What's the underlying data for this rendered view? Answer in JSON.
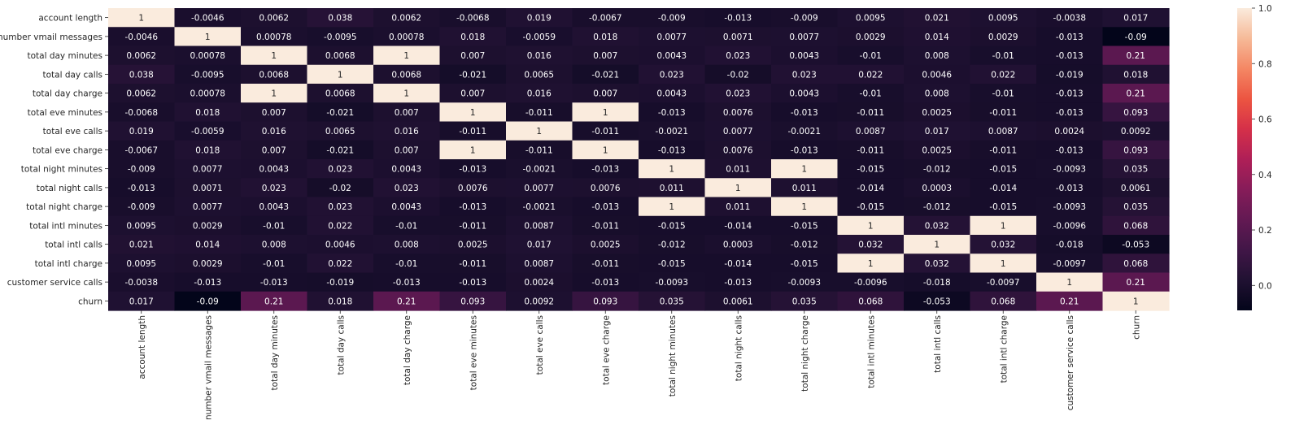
{
  "chart_data": {
    "type": "heatmap",
    "labels": [
      "account length",
      "number vmail messages",
      "total day minutes",
      "total day calls",
      "total day charge",
      "total eve minutes",
      "total eve calls",
      "total eve charge",
      "total night minutes",
      "total night calls",
      "total night charge",
      "total intl minutes",
      "total intl calls",
      "total intl charge",
      "customer service calls",
      "churn"
    ],
    "values": [
      [
        "1",
        "-0.0046",
        "0.0062",
        "0.038",
        "0.0062",
        "-0.0068",
        "0.019",
        "-0.0067",
        "-0.009",
        "-0.013",
        "-0.009",
        "0.0095",
        "0.021",
        "0.0095",
        "-0.0038",
        "0.017"
      ],
      [
        "-0.0046",
        "1",
        "0.00078",
        "-0.0095",
        "0.00078",
        "0.018",
        "-0.0059",
        "0.018",
        "0.0077",
        "0.0071",
        "0.0077",
        "0.0029",
        "0.014",
        "0.0029",
        "-0.013",
        "-0.09"
      ],
      [
        "0.0062",
        "0.00078",
        "1",
        "0.0068",
        "1",
        "0.007",
        "0.016",
        "0.007",
        "0.0043",
        "0.023",
        "0.0043",
        "-0.01",
        "0.008",
        "-0.01",
        "-0.013",
        "0.21"
      ],
      [
        "0.038",
        "-0.0095",
        "0.0068",
        "1",
        "0.0068",
        "-0.021",
        "0.0065",
        "-0.021",
        "0.023",
        "-0.02",
        "0.023",
        "0.022",
        "0.0046",
        "0.022",
        "-0.019",
        "0.018"
      ],
      [
        "0.0062",
        "0.00078",
        "1",
        "0.0068",
        "1",
        "0.007",
        "0.016",
        "0.007",
        "0.0043",
        "0.023",
        "0.0043",
        "-0.01",
        "0.008",
        "-0.01",
        "-0.013",
        "0.21"
      ],
      [
        "-0.0068",
        "0.018",
        "0.007",
        "-0.021",
        "0.007",
        "1",
        "-0.011",
        "1",
        "-0.013",
        "0.0076",
        "-0.013",
        "-0.011",
        "0.0025",
        "-0.011",
        "-0.013",
        "0.093"
      ],
      [
        "0.019",
        "-0.0059",
        "0.016",
        "0.0065",
        "0.016",
        "-0.011",
        "1",
        "-0.011",
        "-0.0021",
        "0.0077",
        "-0.0021",
        "0.0087",
        "0.017",
        "0.0087",
        "0.0024",
        "0.0092"
      ],
      [
        "-0.0067",
        "0.018",
        "0.007",
        "-0.021",
        "0.007",
        "1",
        "-0.011",
        "1",
        "-0.013",
        "0.0076",
        "-0.013",
        "-0.011",
        "0.0025",
        "-0.011",
        "-0.013",
        "0.093"
      ],
      [
        "-0.009",
        "0.0077",
        "0.0043",
        "0.023",
        "0.0043",
        "-0.013",
        "-0.0021",
        "-0.013",
        "1",
        "0.011",
        "1",
        "-0.015",
        "-0.012",
        "-0.015",
        "-0.0093",
        "0.035"
      ],
      [
        "-0.013",
        "0.0071",
        "0.023",
        "-0.02",
        "0.023",
        "0.0076",
        "0.0077",
        "0.0076",
        "0.011",
        "1",
        "0.011",
        "-0.014",
        "0.0003",
        "-0.014",
        "-0.013",
        "0.0061"
      ],
      [
        "-0.009",
        "0.0077",
        "0.0043",
        "0.023",
        "0.0043",
        "-0.013",
        "-0.0021",
        "-0.013",
        "1",
        "0.011",
        "1",
        "-0.015",
        "-0.012",
        "-0.015",
        "-0.0093",
        "0.035"
      ],
      [
        "0.0095",
        "0.0029",
        "-0.01",
        "0.022",
        "-0.01",
        "-0.011",
        "0.0087",
        "-0.011",
        "-0.015",
        "-0.014",
        "-0.015",
        "1",
        "0.032",
        "1",
        "-0.0096",
        "0.068"
      ],
      [
        "0.021",
        "0.014",
        "0.008",
        "0.0046",
        "0.008",
        "0.0025",
        "0.017",
        "0.0025",
        "-0.012",
        "0.0003",
        "-0.012",
        "0.032",
        "1",
        "0.032",
        "-0.018",
        "-0.053"
      ],
      [
        "0.0095",
        "0.0029",
        "-0.01",
        "0.022",
        "-0.01",
        "-0.011",
        "0.0087",
        "-0.011",
        "-0.015",
        "-0.014",
        "-0.015",
        "1",
        "0.032",
        "1",
        "-0.0097",
        "0.068"
      ],
      [
        "-0.0038",
        "-0.013",
        "-0.013",
        "-0.019",
        "-0.013",
        "-0.013",
        "0.0024",
        "-0.013",
        "-0.0093",
        "-0.013",
        "-0.0093",
        "-0.0096",
        "-0.018",
        "-0.0097",
        "1",
        "0.21"
      ],
      [
        "0.017",
        "-0.09",
        "0.21",
        "0.018",
        "0.21",
        "0.093",
        "0.0092",
        "0.093",
        "0.035",
        "0.0061",
        "0.035",
        "0.068",
        "-0.053",
        "0.068",
        "0.21",
        "1"
      ]
    ],
    "colorbar": {
      "min": -0.09,
      "max": 1.0,
      "ticks": [
        "0.0",
        "0.2",
        "0.4",
        "0.6",
        "0.8",
        "1.0"
      ],
      "tick_values": [
        0.0,
        0.2,
        0.4,
        0.6,
        0.8,
        1.0
      ]
    },
    "colormap": "rocket",
    "title": "",
    "xlabel": "",
    "ylabel": ""
  }
}
